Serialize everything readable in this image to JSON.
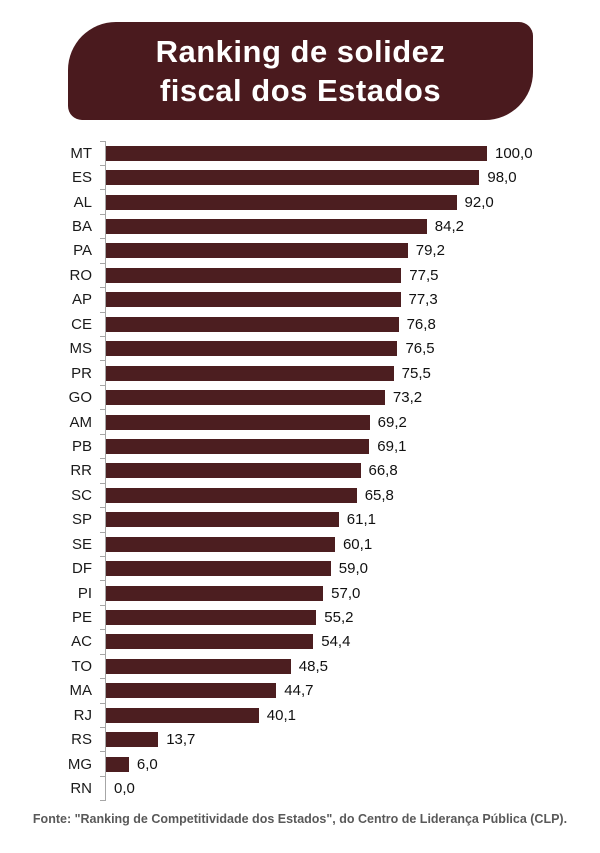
{
  "header": {
    "title_line1": "Ranking de solidez",
    "title_line2": "fiscal dos Estados"
  },
  "colors": {
    "banner_bg": "#4A1A1E",
    "bar_fill": "#4C1E20",
    "axis": "#A6A6A6",
    "label_text": "#1A1A1A",
    "footer_text": "#595959"
  },
  "chart_data": {
    "type": "bar",
    "orientation": "horizontal",
    "title": "Ranking de solidez fiscal dos Estados",
    "xlabel": "",
    "ylabel": "",
    "xlim": [
      0,
      100
    ],
    "grid": false,
    "legend": false,
    "decimal_separator": ",",
    "categories": [
      "MT",
      "ES",
      "AL",
      "BA",
      "PA",
      "RO",
      "AP",
      "CE",
      "MS",
      "PR",
      "GO",
      "AM",
      "PB",
      "RR",
      "SC",
      "SP",
      "SE",
      "DF",
      "PI",
      "PE",
      "AC",
      "TO",
      "MA",
      "RJ",
      "RS",
      "MG",
      "RN"
    ],
    "values": [
      100.0,
      98.0,
      92.0,
      84.2,
      79.2,
      77.5,
      77.3,
      76.8,
      76.5,
      75.5,
      73.2,
      69.2,
      69.1,
      66.8,
      65.8,
      61.1,
      60.1,
      59.0,
      57.0,
      55.2,
      54.4,
      48.5,
      44.7,
      40.1,
      13.7,
      6.0,
      0.0
    ],
    "value_labels": [
      "100,0",
      "98,0",
      "92,0",
      "84,2",
      "79,2",
      "77,5",
      "77,3",
      "76,8",
      "76,5",
      "75,5",
      "73,2",
      "69,2",
      "69,1",
      "66,8",
      "65,8",
      "61,1",
      "60,1",
      "59,0",
      "57,0",
      "55,2",
      "54,4",
      "48,5",
      "44,7",
      "40,1",
      "13,7",
      "6,0",
      "0,0"
    ]
  },
  "footer": {
    "text": "Fonte: \"Ranking de Competitividade dos Estados\", do Centro de Liderança Pública (CLP)."
  }
}
